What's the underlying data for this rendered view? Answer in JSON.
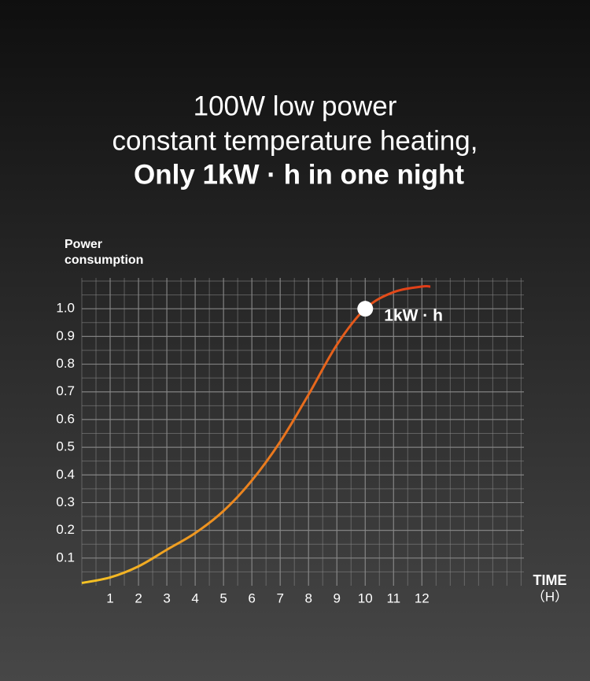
{
  "chart_data": {
    "type": "line",
    "title_lines": [
      "100W low power",
      "constant temperature heating,",
      "Only 1kW · h in one night"
    ],
    "ylabel": [
      "Power",
      "consumption"
    ],
    "xlabel": [
      "TIME",
      "（H）"
    ],
    "x": [
      0,
      1,
      2,
      3,
      4,
      5,
      6,
      7,
      8,
      9,
      10,
      11,
      12,
      12.3
    ],
    "series": [
      {
        "colors": [
          "#f5c425",
          "#e03a18"
        ],
        "values": [
          0.01,
          0.03,
          0.07,
          0.13,
          0.19,
          0.27,
          0.38,
          0.52,
          0.69,
          0.87,
          1.0,
          1.06,
          1.08,
          1.08
        ]
      }
    ],
    "xlim": [
      0,
      15.6
    ],
    "ylim": [
      0,
      1.1
    ],
    "xticks": [
      1,
      2,
      3,
      4,
      5,
      6,
      7,
      8,
      9,
      10,
      11,
      12
    ],
    "yticks": [
      0.1,
      0.2,
      0.3,
      0.4,
      0.5,
      0.6,
      0.7,
      0.8,
      0.9,
      {
        "value": 1,
        "label": "1.0"
      }
    ],
    "grid": true,
    "grid_color": "#8a8a8a",
    "annotation": {
      "text": "1kW · h",
      "x": 10,
      "y": 1.0
    }
  }
}
